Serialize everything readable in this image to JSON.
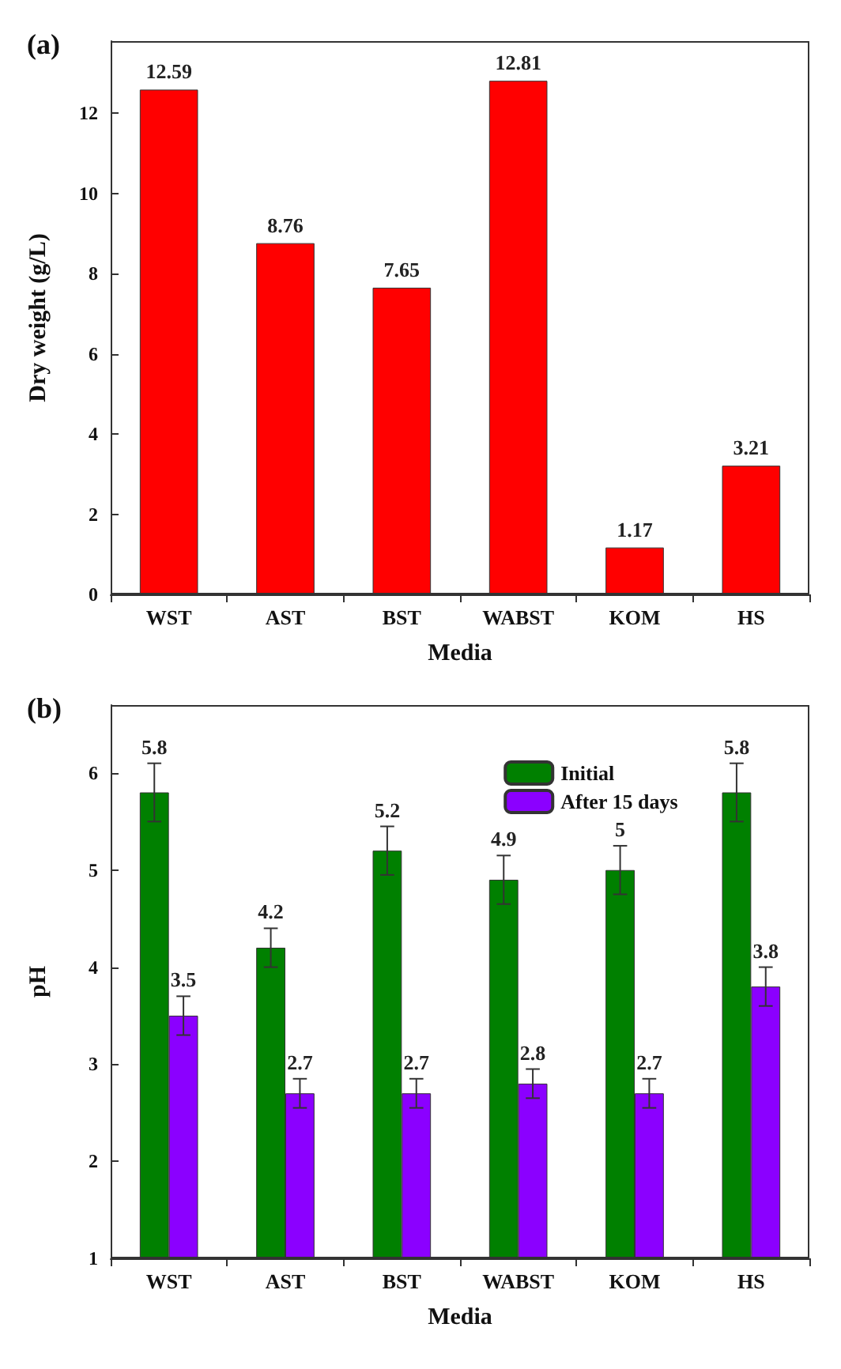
{
  "chart_data": [
    {
      "type": "bar",
      "title": "(a)",
      "xlabel": "Media",
      "ylabel": "Dry weight (g/L)",
      "categories": [
        "WST",
        "AST",
        "BST",
        "WABST",
        "KOM",
        "HS"
      ],
      "series": [
        {
          "color": "#ff0000",
          "values": [
            12.59,
            8.76,
            7.65,
            12.81,
            1.17,
            3.21
          ]
        }
      ],
      "ylim": [
        0,
        13.8
      ],
      "yticks": [
        0,
        2,
        4,
        6,
        8,
        10,
        12
      ],
      "grid": false,
      "legend": false,
      "data_labels": true
    },
    {
      "type": "bar",
      "title": "(b)",
      "xlabel": "Media",
      "ylabel": "pH",
      "categories": [
        "WST",
        "AST",
        "BST",
        "WABST",
        "KOM",
        "HS"
      ],
      "series": [
        {
          "name": "Initial",
          "color": "#008000",
          "values": [
            5.8,
            4.2,
            5.2,
            4.9,
            5,
            5.8
          ],
          "errors": [
            0.3,
            0.2,
            0.25,
            0.25,
            0.25,
            0.3
          ]
        },
        {
          "name": "After 15 days",
          "color": "#8b00ff",
          "values": [
            3.5,
            2.7,
            2.7,
            2.8,
            2.7,
            3.8
          ],
          "errors": [
            0.2,
            0.15,
            0.15,
            0.15,
            0.15,
            0.2
          ]
        }
      ],
      "ylim": [
        1,
        6.7
      ],
      "yticks": [
        1,
        2,
        3,
        4,
        5,
        6
      ],
      "grid": false,
      "legend": "top right",
      "data_labels": true
    }
  ]
}
